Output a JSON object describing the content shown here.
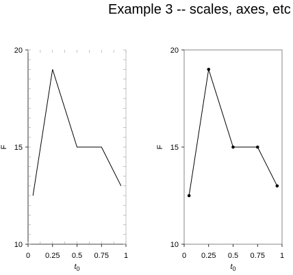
{
  "figure": {
    "title": "Example 3 -- scales, axes, etc"
  },
  "chart_data": [
    {
      "type": "line",
      "markers": false,
      "frame": "left-bottom-with-minor-ticks",
      "x": [
        0.05,
        0.25,
        0.5,
        0.75,
        0.95
      ],
      "y": [
        12.5,
        19,
        15,
        15,
        13
      ],
      "xlim": [
        0,
        1
      ],
      "ylim": [
        10,
        20
      ],
      "xticks": [
        0,
        0.25,
        0.5,
        0.75,
        1
      ],
      "xtick_labels": [
        "0",
        "0.25",
        "0.5",
        "0.75",
        "1"
      ],
      "yticks": [
        10,
        15,
        20
      ],
      "ytick_labels": [
        "10",
        "15",
        "20"
      ],
      "xlabel": "t",
      "xlabel_sub": "0",
      "ylabel": "F"
    },
    {
      "type": "line",
      "markers": true,
      "frame": "full-box",
      "x": [
        0.05,
        0.25,
        0.5,
        0.75,
        0.95
      ],
      "y": [
        12.5,
        19,
        15,
        15,
        13
      ],
      "xlim": [
        0,
        1
      ],
      "ylim": [
        10,
        20
      ],
      "xticks": [
        0,
        0.25,
        0.5,
        0.75,
        1
      ],
      "xtick_labels": [
        "0",
        "0.25",
        "0.5",
        "0.75",
        "1"
      ],
      "yticks": [
        10,
        15,
        20
      ],
      "ytick_labels": [
        "10",
        "15",
        "20"
      ],
      "xlabel": "t",
      "xlabel_sub": "0",
      "ylabel": "F"
    }
  ]
}
